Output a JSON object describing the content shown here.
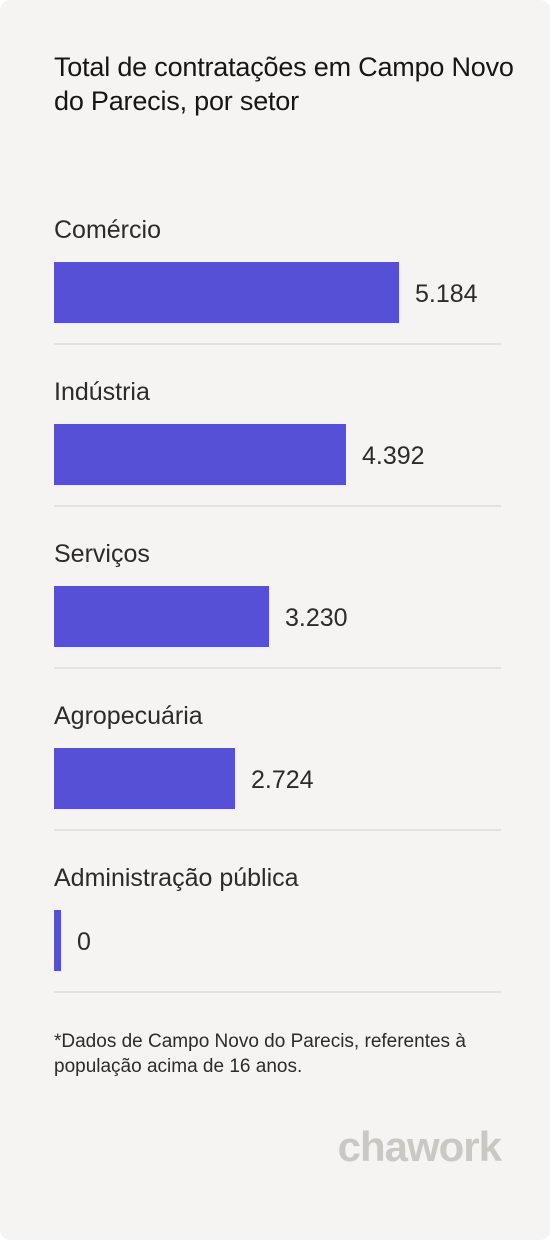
{
  "title": "Total de contratações em Campo Novo do Parecis, por setor",
  "chart_data": {
    "type": "bar",
    "orientation": "horizontal",
    "title": "Total de contratações em Campo Novo do Parecis, por setor",
    "categories": [
      "Comércio",
      "Indústria",
      "Serviços",
      "Agropecuária",
      "Administração pública"
    ],
    "values": [
      5184,
      4392,
      3230,
      2724,
      0
    ],
    "value_labels": [
      "5.184",
      "4.392",
      "3.230",
      "2.724",
      "0"
    ],
    "bar_color": "#5650d7",
    "xlim": [
      0,
      5184
    ],
    "grid": false,
    "legend": "none"
  },
  "footnote": "*Dados de Campo Novo do Parecis, referentes à população acima de 16 anos.",
  "brand": "chawork",
  "colors": {
    "background": "#f5f4f2",
    "bar": "#5650d7",
    "divider": "#e3e2df",
    "text": "#2b2b2b",
    "brand": "#c9c8c3"
  }
}
